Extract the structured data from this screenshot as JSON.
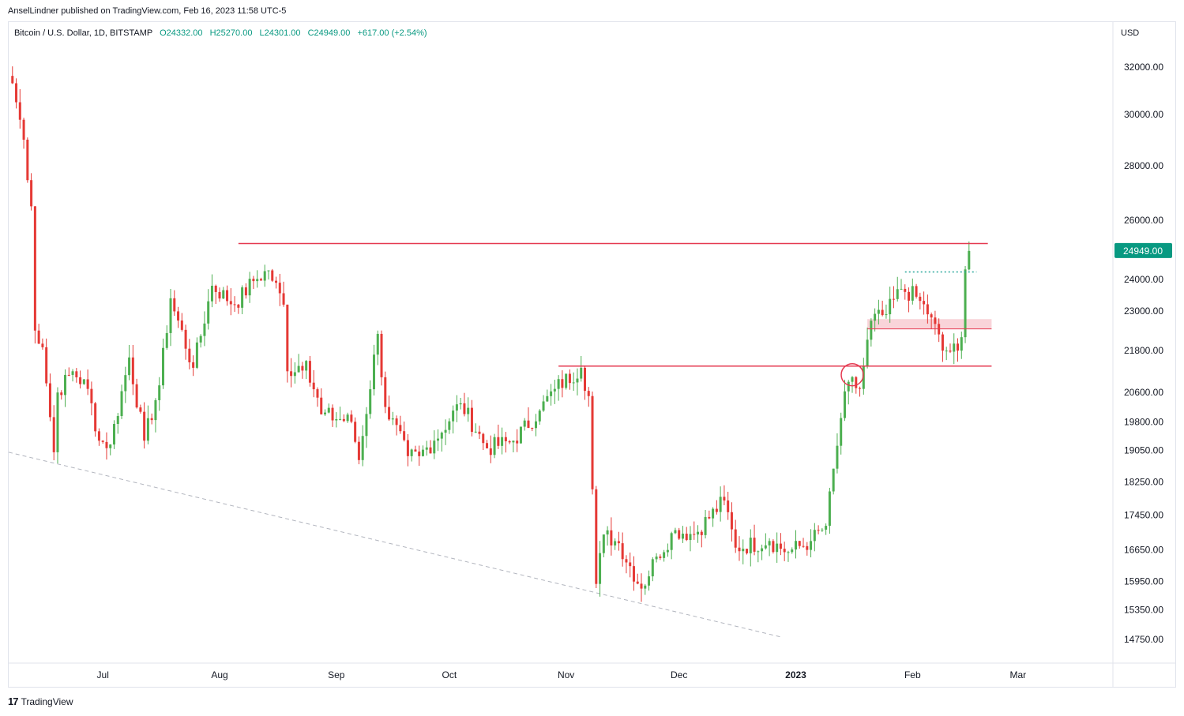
{
  "header": {
    "published_text": "AnselLindner published on TradingView.com, Feb 16, 2023 11:58 UTC-5"
  },
  "legend": {
    "symbol": "Bitcoin / U.S. Dollar, 1D, BITSTAMP",
    "open": "O24332.00",
    "high": "H25270.00",
    "low": "L24301.00",
    "close": "C24949.00",
    "change": "+617.00 (+2.54%)"
  },
  "axis": {
    "currency": "USD",
    "last_price_label": "24949.00"
  },
  "footer": {
    "brand": "TradingView",
    "icon": "tradingview-logo-icon"
  },
  "colors": {
    "up": "#089981",
    "down": "#f23645",
    "candle_up": "#4caf50",
    "candle_down": "#e53935",
    "level_line": "#e53950",
    "zone_fill": "#f8c9cf",
    "dotted_teal": "#26a69a",
    "trendline": "#b2b5be",
    "circle": "#e53950"
  },
  "chart_data": {
    "type": "candlestick",
    "title": "Bitcoin / U.S. Dollar, 1D, BITSTAMP",
    "scale": "log",
    "ylim": [
      14300,
      34000
    ],
    "y_ticks": [
      "32000.00",
      "30000.00",
      "28000.00",
      "26000.00",
      "24000.00",
      "23000.00",
      "21800.00",
      "20600.00",
      "19800.00",
      "19050.00",
      "18250.00",
      "17450.00",
      "16650.00",
      "15950.00",
      "15350.00",
      "14750.00"
    ],
    "x_ticks": [
      {
        "label": "Jul",
        "date": "2022-07-01",
        "bold": false
      },
      {
        "label": "Aug",
        "date": "2022-08-01",
        "bold": false
      },
      {
        "label": "Sep",
        "date": "2022-09-01",
        "bold": false
      },
      {
        "label": "Oct",
        "date": "2022-10-01",
        "bold": false
      },
      {
        "label": "Nov",
        "date": "2022-11-01",
        "bold": false
      },
      {
        "label": "Dec",
        "date": "2022-12-01",
        "bold": false
      },
      {
        "label": "2023",
        "date": "2023-01-01",
        "bold": true
      },
      {
        "label": "Feb",
        "date": "2023-02-01",
        "bold": false
      },
      {
        "label": "Mar",
        "date": "2023-03-01",
        "bold": false
      }
    ],
    "x_range": [
      "2022-06-06",
      "2023-03-26"
    ],
    "anchors": [
      [
        "2022-06-07",
        31300
      ],
      [
        "2022-06-10",
        29000
      ],
      [
        "2022-06-12",
        26500
      ],
      [
        "2022-06-13",
        22400
      ],
      [
        "2022-06-15",
        21900
      ],
      [
        "2022-06-18",
        19000
      ],
      [
        "2022-06-19",
        20600
      ],
      [
        "2022-06-23",
        21200
      ],
      [
        "2022-06-27",
        20700
      ],
      [
        "2022-06-30",
        19300
      ],
      [
        "2022-07-03",
        19200
      ],
      [
        "2022-07-08",
        21600
      ],
      [
        "2022-07-12",
        19300
      ],
      [
        "2022-07-16",
        20800
      ],
      [
        "2022-07-19",
        23400
      ],
      [
        "2022-07-25",
        21300
      ],
      [
        "2022-07-30",
        23800
      ],
      [
        "2022-08-05",
        23200
      ],
      [
        "2022-08-10",
        23950
      ],
      [
        "2022-08-14",
        24300
      ],
      [
        "2022-08-18",
        23200
      ],
      [
        "2022-08-19",
        21200
      ],
      [
        "2022-08-24",
        21500
      ],
      [
        "2022-08-28",
        20000
      ],
      [
        "2022-09-05",
        19800
      ],
      [
        "2022-09-07",
        18800
      ],
      [
        "2022-09-12",
        22300
      ],
      [
        "2022-09-14",
        20200
      ],
      [
        "2022-09-20",
        18900
      ],
      [
        "2022-09-23",
        18900
      ],
      [
        "2022-09-27",
        19300
      ],
      [
        "2022-10-04",
        20300
      ],
      [
        "2022-10-11",
        19100
      ],
      [
        "2022-10-18",
        19300
      ],
      [
        "2022-10-25",
        20100
      ],
      [
        "2022-10-29",
        20700
      ],
      [
        "2022-11-05",
        21300
      ],
      [
        "2022-11-07",
        20500
      ],
      [
        "2022-11-09",
        15900
      ],
      [
        "2022-11-11",
        17000
      ],
      [
        "2022-11-15",
        16800
      ],
      [
        "2022-11-21",
        15800
      ],
      [
        "2022-11-25",
        16500
      ],
      [
        "2022-11-30",
        17100
      ],
      [
        "2022-12-05",
        17000
      ],
      [
        "2022-12-13",
        17800
      ],
      [
        "2022-12-16",
        16700
      ],
      [
        "2022-12-25",
        16850
      ],
      [
        "2022-12-30",
        16600
      ],
      [
        "2023-01-05",
        16850
      ],
      [
        "2023-01-09",
        17200
      ],
      [
        "2023-01-13",
        19900
      ],
      [
        "2023-01-15",
        20900
      ],
      [
        "2023-01-18",
        20700
      ],
      [
        "2023-01-21",
        22700
      ],
      [
        "2023-01-25",
        22900
      ],
      [
        "2023-01-29",
        23700
      ],
      [
        "2023-02-02",
        23450
      ],
      [
        "2023-02-06",
        22800
      ],
      [
        "2023-02-09",
        21800
      ],
      [
        "2023-02-13",
        21800
      ],
      [
        "2023-02-14",
        22200
      ],
      [
        "2023-02-15",
        24332
      ],
      [
        "2023-02-16",
        24949
      ]
    ],
    "last_candle": {
      "date": "2023-02-16",
      "open": 24332.0,
      "high": 25270.0,
      "low": 24301.0,
      "close": 24949.0
    },
    "annotations": {
      "horizontal_lines": [
        {
          "price": 25200,
          "from": "2022-08-06",
          "to": "2023-02-21"
        },
        {
          "price": 21350,
          "from": "2022-10-30",
          "to": "2023-02-22"
        },
        {
          "price": 22450,
          "from": "2023-01-20",
          "to": "2023-02-22"
        }
      ],
      "dotted_line": {
        "price": 24250,
        "from": "2023-01-30",
        "to": "2023-02-18"
      },
      "zone": {
        "price_low": 22450,
        "price_high": 22750,
        "from": "2023-01-20",
        "to": "2023-02-22"
      },
      "circle": {
        "date": "2023-01-16",
        "price": 21100
      },
      "trendline": {
        "from": [
          "2022-06-06",
          19000
        ],
        "to": [
          "2022-12-28",
          14800
        ]
      }
    }
  }
}
